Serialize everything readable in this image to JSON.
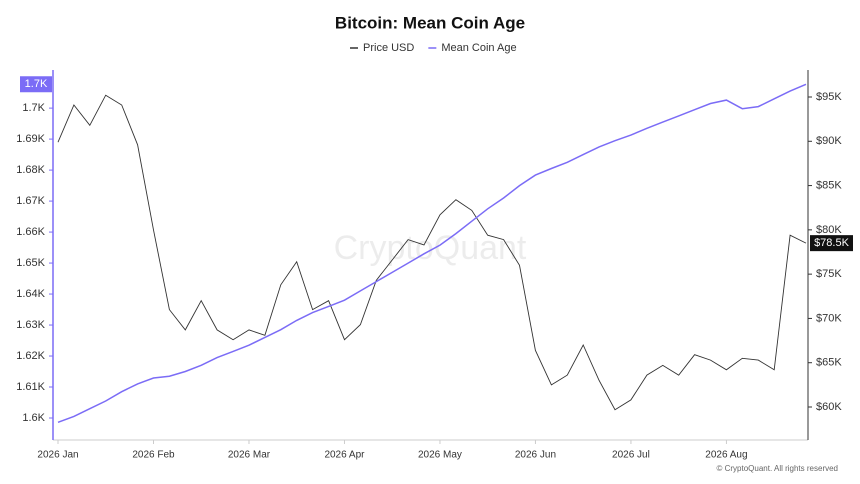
{
  "chart_data": {
    "type": "line",
    "title": "Bitcoin: Mean Coin Age",
    "watermark": "CryptoQuant",
    "credit": "© CryptoQuant. All rights reserved",
    "categories": [
      "2026 Jan",
      null,
      null,
      null,
      null,
      null,
      "2026 Feb",
      null,
      null,
      null,
      null,
      null,
      "2026 Mar",
      null,
      null,
      null,
      null,
      null,
      "2026 Apr",
      null,
      null,
      null,
      null,
      null,
      "2026 May",
      null,
      null,
      null,
      null,
      null,
      "2026 Jun",
      null,
      null,
      null,
      null,
      null,
      "2026 Jul",
      null,
      null,
      null,
      null,
      null,
      "2026 Aug",
      null,
      null,
      null,
      null,
      null
    ],
    "series": [
      {
        "name": "Price USD",
        "color": "#333333",
        "axis": "y2",
        "values": [
          89900,
          94100,
          91800,
          95200,
          94100,
          89600,
          80000,
          71000,
          68700,
          72000,
          68700,
          67600,
          68700,
          68100,
          73800,
          76400,
          71000,
          72000,
          67600,
          69300,
          74300,
          76600,
          78900,
          78300,
          81700,
          83400,
          82200,
          79400,
          78900,
          76000,
          66400,
          62500,
          63600,
          67000,
          63000,
          59700,
          60800,
          63600,
          64700,
          63600,
          65900,
          65300,
          64200,
          65500,
          65300,
          64200,
          79400,
          78500
        ],
        "value_labels": [
          null,
          null,
          null,
          null,
          null,
          null,
          null,
          null,
          null,
          null,
          null,
          null,
          null,
          null,
          null,
          null,
          null,
          null,
          null,
          null,
          null,
          null,
          null,
          null,
          null,
          null,
          null,
          null,
          null,
          null,
          null,
          null,
          null,
          null,
          null,
          null,
          null,
          null,
          null,
          null,
          null,
          null,
          null,
          null,
          null,
          null,
          null,
          "$78.5K"
        ]
      },
      {
        "name": "Mean Coin Age",
        "color": "#7b6cf6",
        "values": [
          1598.6,
          1600.5,
          1603,
          1605.5,
          1608.5,
          1611,
          1612.9,
          1613.5,
          1615,
          1617,
          1619.5,
          1621.5,
          1623.5,
          1626,
          1628.5,
          1631.5,
          1634,
          1636,
          1638,
          1641,
          1644,
          1647,
          1650,
          1653,
          1655.8,
          1659.5,
          1663.5,
          1667.5,
          1671,
          1675,
          1678.4,
          1680.5,
          1682.5,
          1685,
          1687.5,
          1689.5,
          1691.3,
          1693.5,
          1695.5,
          1697.5,
          1699.5,
          1701.5,
          1702.6,
          1699.8,
          1700.5,
          1703,
          1705.5,
          1707.7
        ],
        "value_labels": [
          null,
          null,
          null,
          null,
          null,
          null,
          null,
          null,
          null,
          null,
          null,
          null,
          null,
          null,
          null,
          null,
          null,
          null,
          null,
          null,
          null,
          null,
          null,
          null,
          null,
          null,
          null,
          null,
          null,
          null,
          null,
          null,
          null,
          null,
          null,
          null,
          null,
          null,
          null,
          null,
          null,
          null,
          null,
          null,
          null,
          null,
          null,
          "1.7K"
        ]
      }
    ],
    "ylim": [
      1592.9,
      1712.3
    ],
    "yticks": [
      {
        "value": 1600,
        "label": "1.6K"
      },
      {
        "value": 1610,
        "label": "1.61K"
      },
      {
        "value": 1620,
        "label": "1.62K"
      },
      {
        "value": 1630,
        "label": "1.63K"
      },
      {
        "value": 1640,
        "label": "1.64K"
      },
      {
        "value": 1650,
        "label": "1.65K"
      },
      {
        "value": 1660,
        "label": "1.66K"
      },
      {
        "value": 1670,
        "label": "1.67K"
      },
      {
        "value": 1680,
        "label": "1.68K"
      },
      {
        "value": 1690,
        "label": "1.69K"
      },
      {
        "value": 1700,
        "label": "1.7K"
      }
    ],
    "y2lim": [
      56274,
      98048
    ],
    "y2ticks": [
      {
        "value": 60000,
        "label": "$60K"
      },
      {
        "value": 65000,
        "label": "$65K"
      },
      {
        "value": 70000,
        "label": "$70K"
      },
      {
        "value": 75000,
        "label": "$75K"
      },
      {
        "value": 80000,
        "label": "$80K"
      },
      {
        "value": 85000,
        "label": "$85K"
      },
      {
        "value": 90000,
        "label": "$90K"
      },
      {
        "value": 95000,
        "label": "$95K"
      }
    ]
  }
}
